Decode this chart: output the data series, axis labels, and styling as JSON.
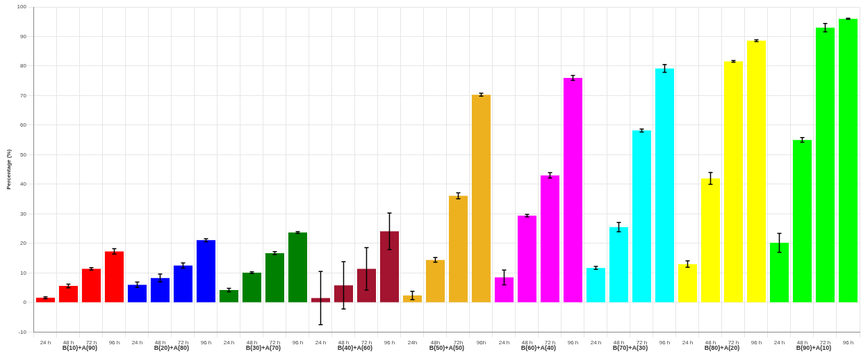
{
  "chart_data": {
    "type": "bar",
    "ylabel": "Percentage (%)",
    "categories": [
      "24 h",
      "48 h",
      "72 h",
      "96 h",
      "24 h",
      "48 h",
      "72 h",
      "96 h",
      "24 h",
      "48 h",
      "72 h",
      "96 h",
      "24 h",
      "48 h",
      "72 h",
      "96 h",
      "24h",
      "48h",
      "72h",
      "96h",
      "24 h",
      "48 h",
      "72 h",
      "96 h",
      "24 h",
      "48 h",
      "72 h",
      "96 h",
      "24 h",
      "48 h",
      "72 h",
      "96 h",
      "24 h",
      "48 h",
      "72 h",
      "96 h"
    ],
    "values": [
      1.6,
      5.6,
      11.4,
      17.3,
      6.0,
      8.3,
      12.5,
      21.1,
      4.2,
      10.1,
      16.7,
      23.7,
      1.5,
      5.8,
      11.4,
      24.1,
      2.4,
      14.4,
      36.1,
      70.3,
      8.5,
      29.4,
      43.0,
      76.0,
      11.7,
      25.5,
      58.2,
      79.2,
      13.0,
      42.0,
      81.6,
      88.6,
      20.2,
      55.0,
      93.0,
      96.0
    ],
    "errors": [
      0.3,
      0.6,
      0.4,
      0.9,
      0.9,
      1.3,
      0.9,
      0.5,
      0.6,
      0.3,
      0.5,
      0.3,
      9,
      8,
      7.2,
      6.2,
      1.4,
      0.8,
      1.0,
      0.5,
      2.5,
      0.4,
      0.9,
      0.8,
      0.5,
      1.6,
      0.5,
      1.3,
      1.1,
      2.0,
      0.3,
      0.3,
      3.2,
      0.8,
      1.4,
      0.2
    ],
    "colors": [
      "#ff0000",
      "#ff0000",
      "#ff0000",
      "#ff0000",
      "#0000ff",
      "#0000ff",
      "#0000ff",
      "#0000ff",
      "#008000",
      "#008000",
      "#008000",
      "#008000",
      "#a2142f",
      "#a2142f",
      "#a2142f",
      "#a2142f",
      "#edb120",
      "#edb120",
      "#edb120",
      "#edb120",
      "#ff00ff",
      "#ff00ff",
      "#ff00ff",
      "#ff00ff",
      "#00ffff",
      "#00ffff",
      "#00ffff",
      "#00ffff",
      "#ffff00",
      "#ffff00",
      "#ffff00",
      "#ffff00",
      "#00ff00",
      "#00ff00",
      "#00ff00",
      "#00ff00"
    ],
    "annotations": [
      "B(10)+A(90)",
      "B(20)+A(80)",
      "B(30)+A(70)",
      "B(40)+A(60)",
      "B(50)+A(50)",
      "B(60)+A(40)",
      "B(70)+A(30)",
      "B(80)+A(20)",
      "B(90)+A(10)"
    ],
    "ylim": [
      -10,
      100
    ],
    "yticks": [
      -10,
      0,
      10,
      20,
      30,
      40,
      50,
      60,
      70,
      80,
      90,
      100
    ],
    "grid": true
  }
}
